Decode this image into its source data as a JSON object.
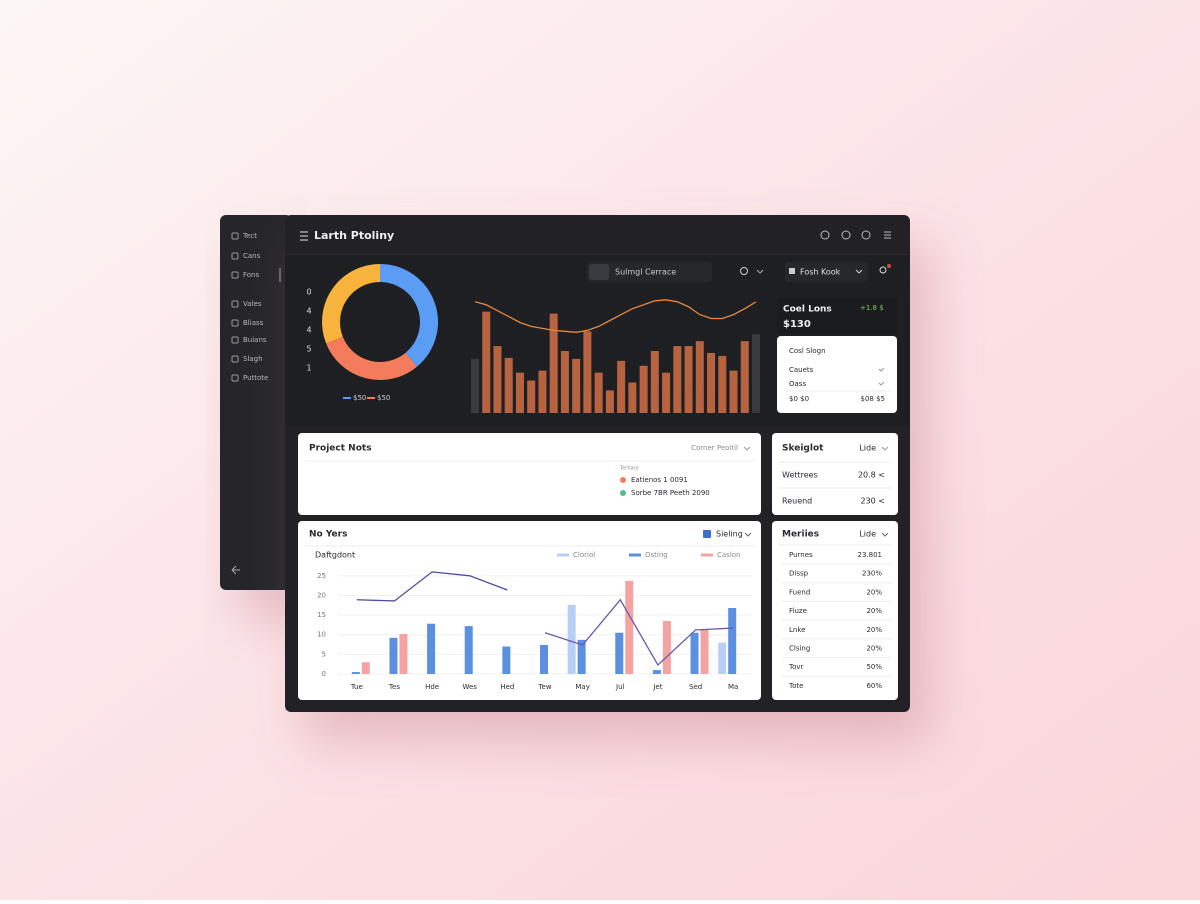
{
  "sidebar": {
    "items": [
      "Tect",
      "Cans",
      "Fons",
      "Vales",
      "Bliass",
      "Buians",
      "Slagh",
      "Puttote"
    ]
  },
  "header": {
    "title": "Larth Ptoliny"
  },
  "donut": {
    "type": "pie",
    "values": [
      39,
      30,
      31
    ],
    "colors": [
      "#5b9cf5",
      "#f47c5c",
      "#f7b33b"
    ],
    "side_labels": [
      0,
      4,
      4,
      5,
      1
    ],
    "legend": [
      {
        "label": "$50",
        "color": "#5b9cf5"
      },
      {
        "label": "$50",
        "color": "#f47c5c"
      }
    ]
  },
  "search": {
    "placeholder": "Sulmgl Cerrace"
  },
  "account": {
    "label": "Fosh Kook"
  },
  "top_chart": {
    "type": "bar",
    "ylim": [
      0,
      125
    ],
    "bar_color": "#b7633f",
    "back_color": "#3a3b40",
    "line_color": "#e9873a",
    "values": [
      null,
      103,
      68,
      56,
      41,
      33,
      43,
      101,
      63,
      55,
      83,
      41,
      23,
      53,
      31,
      48,
      63,
      41,
      68,
      68,
      73,
      61,
      58,
      43,
      73,
      null
    ],
    "back_values": [
      55,
      45,
      40,
      35,
      30,
      28,
      25,
      30,
      28,
      25,
      25,
      22,
      20,
      22,
      20,
      22,
      25,
      22,
      22,
      25,
      22,
      25,
      22,
      25,
      30,
      80
    ],
    "line": [
      113,
      110,
      104,
      98,
      92,
      88,
      86,
      84,
      83,
      82,
      84,
      88,
      94,
      100,
      106,
      110,
      114,
      115,
      113,
      108,
      100,
      96,
      96,
      100,
      106,
      113
    ]
  },
  "summary": {
    "title": "Coel Lons",
    "value": "$130",
    "badge": "+1.8 $",
    "card_title": "Cosl Slogn",
    "rows": [
      "Cauets",
      "Oass"
    ],
    "footer": [
      "$0 $0",
      "$08 $5"
    ]
  },
  "notes": {
    "title": "Project Nots",
    "filter": "Corner Peoitil",
    "caption": "Tertiary",
    "items": [
      {
        "text": "Eatienos 1 0091",
        "color": "#f47c5c"
      },
      {
        "text": "Sorbe 7BR Peeth 2090",
        "color": "#4cbf8c"
      }
    ]
  },
  "stats": {
    "title": "Skeiglot",
    "filter": "Lide",
    "rows": [
      [
        "Wettrees",
        "20.8 <"
      ],
      [
        "Reuend",
        "230 <"
      ]
    ]
  },
  "bottom_chart": {
    "type": "bar",
    "title": "No Yers",
    "filter": "Sieling",
    "filter_color": "#3f6fd1",
    "subtitle": "Daftgdont",
    "categories": [
      "Tue",
      "Tes",
      "Hde",
      "Wes",
      "Hed",
      "Tew",
      "May",
      "Jul",
      "Jet",
      "Sed",
      "Ma"
    ],
    "ylim": [
      0,
      27.5
    ],
    "yticks": [
      0,
      5,
      10,
      15,
      20,
      25
    ],
    "series": [
      {
        "name": "Cloriol",
        "color": "#b9cff5",
        "values": [
          null,
          null,
          null,
          null,
          null,
          null,
          17.6,
          null,
          null,
          null,
          8
        ]
      },
      {
        "name": "Osting",
        "color": "#5b8fe0",
        "values": [
          0.5,
          9.2,
          12.8,
          12.2,
          7,
          7.4,
          8.7,
          10.5,
          1,
          10.5,
          16.8
        ]
      },
      {
        "name": "Caslon",
        "color": "#f4a3a3",
        "values": [
          3,
          10.2,
          null,
          null,
          null,
          null,
          null,
          23.7,
          13.5,
          11.2,
          null
        ]
      }
    ],
    "lines": [
      {
        "color": "#4b4f9e",
        "values": [
          18.9,
          18.6,
          26,
          25,
          21.4,
          null,
          null,
          null,
          null,
          null,
          null
        ]
      },
      {
        "color": "#6a5aa8",
        "values": [
          null,
          null,
          null,
          null,
          null,
          10.5,
          7.4,
          18.9,
          2.3,
          11.2,
          11.7
        ]
      }
    ]
  },
  "metrics": {
    "title": "Meriies",
    "filter": "Lide",
    "rows": [
      [
        "Purnes",
        "23.801"
      ],
      [
        "Dissp",
        "230%"
      ],
      [
        "Fuend",
        "20%"
      ],
      [
        "Fiuze",
        "20%"
      ],
      [
        "Lnke",
        "20%"
      ],
      [
        "Clsing",
        "20%"
      ],
      [
        "Tovr",
        "50%"
      ],
      [
        "Tote",
        "60%"
      ]
    ]
  }
}
